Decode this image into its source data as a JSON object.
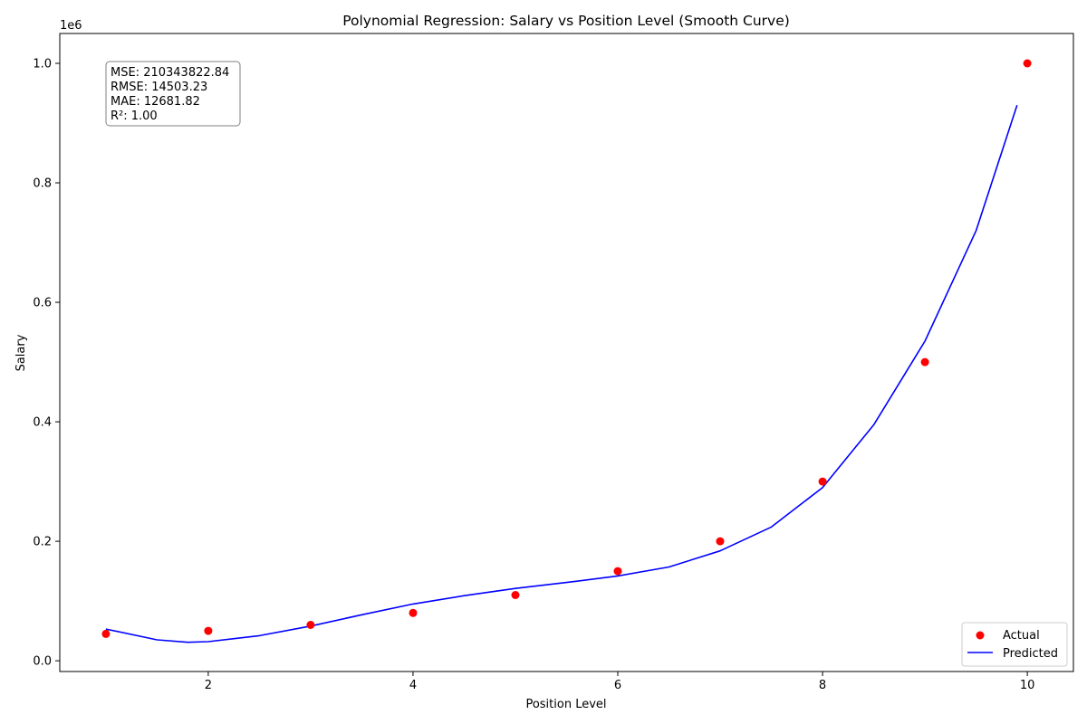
{
  "chart_data": {
    "type": "scatter",
    "title": "Polynomial Regression: Salary vs Position Level (Smooth Curve)",
    "xlabel": "Position Level",
    "ylabel": "Salary",
    "y_offset_label": "1e6",
    "xlim": [
      0.55,
      10.45
    ],
    "ylim": [
      -0.018,
      1.05
    ],
    "x_ticks": [
      2,
      4,
      6,
      8,
      10
    ],
    "x_tick_labels": [
      "2",
      "4",
      "6",
      "8",
      "10"
    ],
    "y_ticks": [
      0.0,
      0.2,
      0.4,
      0.6,
      0.8,
      1.0
    ],
    "y_tick_labels": [
      "0.0",
      "0.2",
      "0.4",
      "0.6",
      "0.8",
      "1.0"
    ],
    "grid": false,
    "legend_position": "bottom-right",
    "series": [
      {
        "name": "Actual",
        "kind": "scatter",
        "color": "#ff0000",
        "x": [
          1,
          2,
          3,
          4,
          5,
          6,
          7,
          8,
          9,
          10
        ],
        "y": [
          0.045,
          0.05,
          0.06,
          0.08,
          0.11,
          0.15,
          0.2,
          0.3,
          0.5,
          1.0
        ]
      },
      {
        "name": "Predicted",
        "kind": "line",
        "color": "#0000ff",
        "x": [
          1.0,
          1.5,
          1.8,
          2.0,
          2.5,
          3.0,
          3.5,
          4.0,
          4.5,
          5.0,
          5.5,
          6.0,
          6.5,
          7.0,
          7.5,
          8.0,
          8.5,
          9.0,
          9.5,
          9.9
        ],
        "y": [
          0.053,
          0.035,
          0.031,
          0.032,
          0.042,
          0.058,
          0.077,
          0.095,
          0.109,
          0.121,
          0.131,
          0.142,
          0.157,
          0.184,
          0.224,
          0.29,
          0.395,
          0.535,
          0.72,
          0.93
        ]
      }
    ],
    "annotation": [
      "MSE: 210343822.84",
      "RMSE: 14503.23",
      "MAE: 12681.82",
      "R²: 1.00"
    ]
  }
}
